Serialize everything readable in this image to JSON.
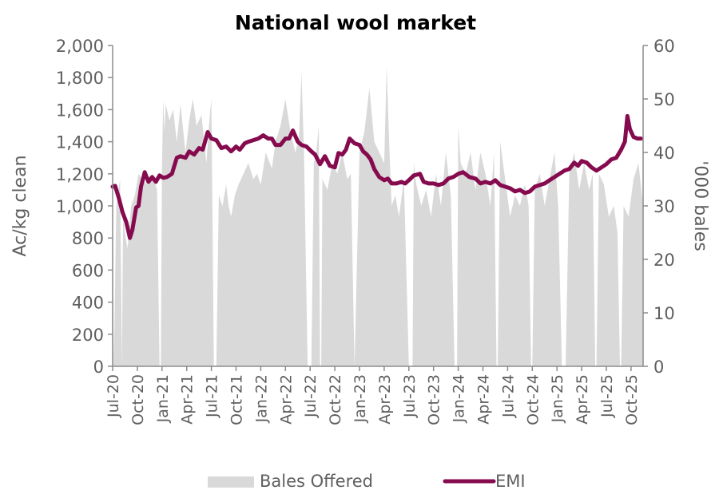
{
  "chart_data": {
    "type": "line",
    "title": "National wool market",
    "ylabel": "Ac/kg clean",
    "y2label": "'000 bales",
    "ylim": [
      0,
      2000
    ],
    "y2lim": [
      0,
      60
    ],
    "yticks": [
      "0",
      "200",
      "400",
      "600",
      "800",
      "1,000",
      "1,200",
      "1,400",
      "1,600",
      "1,800",
      "2,000"
    ],
    "y2ticks": [
      "0",
      "10",
      "20",
      "30",
      "40",
      "50",
      "60"
    ],
    "categories": [
      "Jul-20",
      "Oct-20",
      "Jan-21",
      "Apr-21",
      "Jul-21",
      "Oct-21",
      "Jan-22",
      "Apr-22",
      "Jul-22",
      "Oct-22",
      "Jan-23",
      "Apr-23",
      "Jul-23",
      "Oct-23",
      "Jan-24",
      "Apr-24",
      "Jul-24",
      "Oct-24",
      "Jan-25",
      "Apr-25",
      "Jul-25",
      "Oct-25"
    ],
    "legend": [
      {
        "name": "Bales Offered",
        "type": "area",
        "axis": "right",
        "color": "#d9d9d9"
      },
      {
        "name": "EMI",
        "type": "line",
        "axis": "left",
        "color": "#850a4e"
      }
    ],
    "legend_position": "bottom",
    "grid": false,
    "series": [
      {
        "name": "EMI",
        "axis": "left",
        "unit": "Ac/kg clean",
        "x": [
          0,
          0.1,
          0.25,
          0.4,
          0.55,
          0.7,
          0.8,
          0.95,
          1.05,
          1.15,
          1.3,
          1.45,
          1.6,
          1.75,
          1.9,
          2.05,
          2.2,
          2.4,
          2.6,
          2.75,
          2.95,
          3.1,
          3.3,
          3.5,
          3.65,
          3.85,
          4.0,
          4.2,
          4.4,
          4.6,
          4.8,
          5.0,
          5.15,
          5.35,
          5.5,
          5.7,
          5.9,
          6.1,
          6.3,
          6.45,
          6.6,
          6.8,
          7.0,
          7.15,
          7.3,
          7.5,
          7.65,
          7.85,
          8.05,
          8.2,
          8.4,
          8.6,
          8.8,
          9.0,
          9.15,
          9.3,
          9.45,
          9.6,
          9.8,
          10.0,
          10.15,
          10.3,
          10.45,
          10.6,
          10.8,
          11.0,
          11.15,
          11.3,
          11.5,
          11.7,
          11.85,
          12.0,
          12.2,
          12.45,
          12.6,
          12.8,
          13.0,
          13.2,
          13.4,
          13.6,
          13.8,
          14.0,
          14.2,
          14.45,
          14.7,
          14.9,
          15.1,
          15.3,
          15.5,
          15.7,
          15.9,
          16.1,
          16.3,
          16.5,
          16.7,
          16.9,
          17.1,
          17.3,
          17.5,
          17.7,
          17.9,
          18.1,
          18.3,
          18.5,
          18.7,
          18.85,
          19.0,
          19.2,
          19.4,
          19.6,
          19.8,
          20.0,
          20.2,
          20.4,
          20.6,
          20.75,
          20.85,
          20.95,
          21.1,
          21.25,
          21.4
        ],
        "values": [
          1120,
          1125,
          1050,
          960,
          900,
          800,
          850,
          990,
          1000,
          1120,
          1210,
          1150,
          1180,
          1150,
          1190,
          1175,
          1180,
          1200,
          1300,
          1310,
          1300,
          1340,
          1320,
          1360,
          1350,
          1460,
          1420,
          1410,
          1360,
          1370,
          1340,
          1370,
          1350,
          1390,
          1400,
          1410,
          1420,
          1440,
          1420,
          1420,
          1380,
          1380,
          1420,
          1420,
          1470,
          1400,
          1380,
          1370,
          1340,
          1320,
          1260,
          1310,
          1250,
          1240,
          1330,
          1320,
          1350,
          1420,
          1390,
          1380,
          1340,
          1320,
          1290,
          1230,
          1180,
          1160,
          1170,
          1140,
          1140,
          1150,
          1140,
          1160,
          1190,
          1200,
          1150,
          1140,
          1140,
          1130,
          1140,
          1170,
          1180,
          1200,
          1210,
          1180,
          1170,
          1140,
          1150,
          1140,
          1160,
          1130,
          1120,
          1110,
          1090,
          1100,
          1080,
          1090,
          1120,
          1130,
          1140,
          1160,
          1180,
          1200,
          1220,
          1230,
          1270,
          1250,
          1280,
          1270,
          1240,
          1220,
          1240,
          1260,
          1290,
          1300,
          1350,
          1400,
          1560,
          1480,
          1430,
          1420,
          1420
        ]
      },
      {
        "name": "Bales Offered",
        "axis": "right",
        "unit": "'000 bales",
        "x": [
          0,
          0.05,
          0.15,
          0.3,
          0.38,
          0.42,
          0.5,
          0.6,
          0.75,
          0.9,
          1.05,
          1.2,
          1.4,
          1.6,
          1.8,
          1.9,
          1.95,
          2.0,
          2.05,
          2.1,
          2.15,
          2.3,
          2.45,
          2.6,
          2.75,
          2.95,
          3.1,
          3.25,
          3.4,
          3.6,
          3.8,
          3.9,
          4.0,
          4.1,
          4.2,
          4.3,
          4.45,
          4.6,
          4.7,
          4.8,
          4.95,
          5.1,
          5.3,
          5.5,
          5.7,
          5.85,
          6.0,
          6.2,
          6.45,
          6.6,
          6.8,
          7.0,
          7.2,
          7.4,
          7.55,
          7.65,
          7.75,
          7.9,
          8.05,
          8.15,
          8.25,
          8.35,
          8.4,
          8.45,
          8.5,
          8.7,
          8.9,
          9.1,
          9.3,
          9.5,
          9.65,
          9.8,
          10.0,
          10.2,
          10.4,
          10.6,
          10.8,
          11.0,
          11.1,
          11.2,
          11.3,
          11.45,
          11.6,
          11.8,
          12.0,
          12.15,
          12.2,
          12.3,
          12.5,
          12.7,
          12.9,
          13.1,
          13.3,
          13.5,
          13.7,
          13.85,
          13.95,
          14.0,
          14.1,
          14.3,
          14.5,
          14.7,
          14.9,
          15.1,
          15.3,
          15.45,
          15.55,
          15.6,
          15.7,
          15.9,
          16.1,
          16.3,
          16.5,
          16.7,
          16.85,
          16.95,
          17.0,
          17.1,
          17.3,
          17.5,
          17.7,
          17.9,
          18.05,
          18.2,
          18.35,
          18.5,
          18.7,
          18.9,
          19.1,
          19.3,
          19.45,
          19.55,
          19.6,
          19.7,
          19.9,
          20.1,
          20.3,
          20.45,
          20.55,
          20.6,
          20.7,
          20.9,
          21.1,
          21.3,
          21.5
        ],
        "values": [
          35,
          0,
          30,
          35,
          0,
          28,
          25,
          22,
          30,
          32,
          36,
          35,
          34,
          36,
          33,
          0,
          0,
          38,
          50,
          44,
          49,
          46,
          48,
          42,
          49,
          40,
          46,
          50,
          45,
          47,
          38,
          45,
          50,
          0,
          0,
          32,
          30,
          34,
          30,
          28,
          32,
          34,
          36,
          38,
          35,
          36,
          34,
          40,
          37,
          42,
          45,
          50,
          44,
          40,
          43,
          55,
          40,
          0,
          0,
          38,
          40,
          45,
          0,
          0,
          35,
          33,
          38,
          36,
          40,
          35,
          36,
          0,
          40,
          44,
          52,
          42,
          40,
          38,
          56,
          42,
          30,
          32,
          28,
          35,
          0,
          0,
          38,
          34,
          30,
          33,
          28,
          36,
          30,
          40,
          32,
          0,
          0,
          45,
          38,
          36,
          40,
          33,
          40,
          36,
          30,
          40,
          0,
          0,
          42,
          35,
          28,
          32,
          30,
          34,
          30,
          0,
          0,
          33,
          36,
          30,
          35,
          40,
          30,
          0,
          0,
          36,
          40,
          33,
          38,
          33,
          36,
          0,
          0,
          36,
          34,
          28,
          30,
          25,
          0,
          0,
          30,
          28,
          35,
          38,
          30
        ]
      }
    ]
  },
  "legend": {
    "bales_label": "Bales Offered",
    "emi_label": "EMI"
  }
}
